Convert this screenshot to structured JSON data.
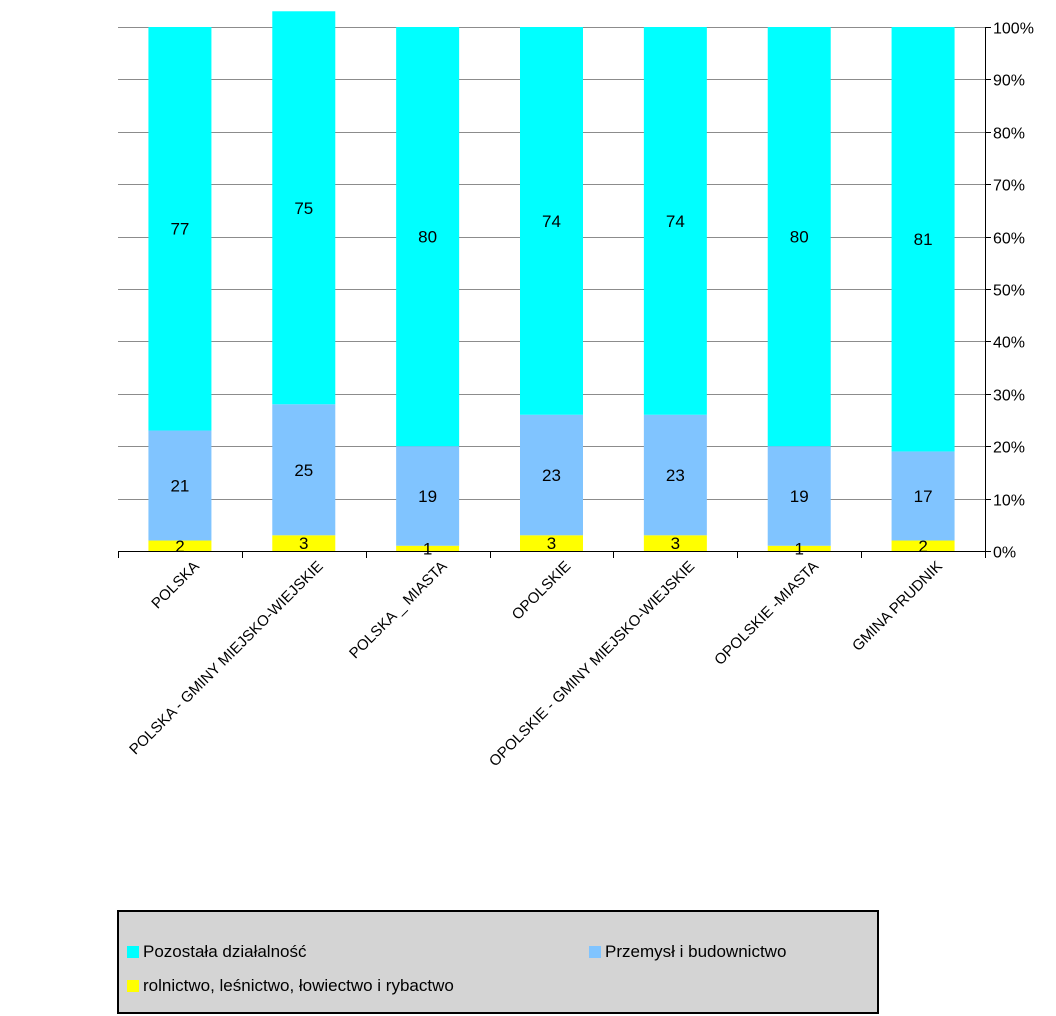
{
  "chart_data": {
    "type": "bar",
    "stacked": true,
    "percent": true,
    "categories": [
      "POLSKA",
      "POLSKA - GMINY MIEJSKO-WIEJSKIE",
      "POLSKA _ MIASTA",
      "OPOLSKIE",
      "OPOLSKIE - GMINY MIEJSKO-WIEJSKIE",
      "OPOLSKIE -MIASTA",
      "GMINA PRUDNIK"
    ],
    "series": [
      {
        "name": "rolnictwo, leśnictwo, łowiectwo i rybactwo",
        "color": "#ffff00",
        "values": [
          2,
          3,
          1,
          3,
          3,
          1,
          2
        ]
      },
      {
        "name": "Przemysł i budownictwo",
        "color": "#80c4ff",
        "values": [
          21,
          25,
          19,
          23,
          23,
          19,
          17
        ]
      },
      {
        "name": "Pozostała działalność",
        "color": "#00ffff",
        "values": [
          77,
          75,
          80,
          74,
          74,
          80,
          81
        ]
      }
    ],
    "y_ticks": [
      "0%",
      "10%",
      "20%",
      "30%",
      "40%",
      "50%",
      "60%",
      "70%",
      "80%",
      "90%",
      "100%"
    ],
    "ylim": [
      0,
      100
    ],
    "y_axis_side": "right",
    "grid": true,
    "legend_position": "bottom"
  },
  "legend": {
    "items": [
      {
        "label": "Pozostała działalność",
        "color": "#00ffff"
      },
      {
        "label": "Przemysł i budownictwo",
        "color": "#80c4ff"
      },
      {
        "label": "rolnictwo, leśnictwo, łowiectwo i rybactwo",
        "color": "#ffff00"
      }
    ]
  }
}
